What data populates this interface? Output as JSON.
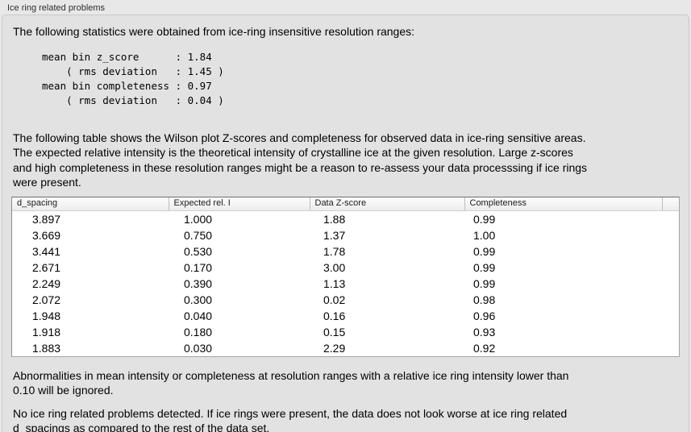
{
  "panel": {
    "title": "Ice ring related problems",
    "intro": "The following statistics were obtained from ice-ring insensitive resolution ranges:",
    "stats_block": "mean bin z_score      : 1.84\n    ( rms deviation   : 1.45 )\nmean bin completeness : 0.97\n    ( rms deviation   : 0.04 )",
    "stats": {
      "mean_bin_z_score": "1.84",
      "z_score_rms_deviation": "1.45",
      "mean_bin_completeness": "0.97",
      "completeness_rms_deviation": "0.04"
    },
    "table_description": "The following table shows the Wilson plot Z-scores and completeness for observed data in ice-ring sensitive areas.\nThe expected relative intensity is the theoretical intensity of crystalline ice at the given resolution. Large z-scores\nand high completeness in these resolution ranges might be a reason to re-assess your data processsing if ice rings\nwere present.",
    "note_ignored": "Abnormalities in mean intensity or completeness at resolution ranges with a relative ice ring intensity lower than\n0.10 will be ignored.",
    "conclusion": "No ice ring related problems detected. If ice rings were present, the data does not look worse at ice ring related\nd_spacings as compared to the rest of the data set."
  },
  "table": {
    "columns": [
      "d_spacing",
      "Expected rel. I",
      "Data Z-score",
      "Completeness",
      ""
    ],
    "rows": [
      [
        "3.897",
        "1.000",
        "1.88",
        "0.99"
      ],
      [
        "3.669",
        "0.750",
        "1.37",
        "1.00"
      ],
      [
        "3.441",
        "0.530",
        "1.78",
        "0.99"
      ],
      [
        "2.671",
        "0.170",
        "3.00",
        "0.99"
      ],
      [
        "2.249",
        "0.390",
        "1.13",
        "0.99"
      ],
      [
        "2.072",
        "0.300",
        "0.02",
        "0.98"
      ],
      [
        "1.948",
        "0.040",
        "0.16",
        "0.96"
      ],
      [
        "1.918",
        "0.180",
        "0.15",
        "0.93"
      ],
      [
        "1.883",
        "0.030",
        "2.29",
        "0.92"
      ]
    ]
  },
  "colors": {
    "page_bg": "#e8e8e8",
    "panel_bg": "#e2e2e2",
    "table_bg": "#ffffff",
    "text": "#000000"
  }
}
